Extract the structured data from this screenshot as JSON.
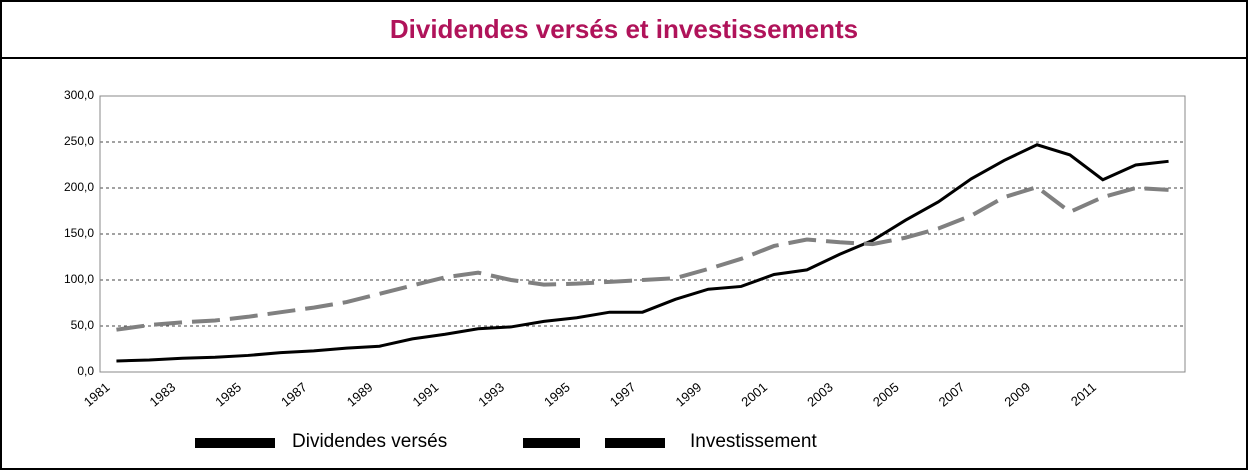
{
  "chart_data": {
    "type": "line",
    "title": "Dividendes versés et investissements",
    "categories": [
      "1981",
      null,
      "1983",
      null,
      "1985",
      null,
      "1987",
      null,
      "1989",
      null,
      "1991",
      null,
      "1993",
      null,
      "1995",
      null,
      "1997",
      null,
      "1999",
      null,
      "2001",
      null,
      "2003",
      null,
      "2005",
      null,
      "2007",
      null,
      "2009",
      null,
      "2011",
      null,
      null
    ],
    "series": [
      {
        "name": "Dividendes versés",
        "color": "#000000",
        "values": [
          12,
          13,
          15,
          16,
          18,
          21,
          23,
          26,
          28,
          36,
          41,
          47,
          49,
          55,
          59,
          65,
          65,
          79,
          90,
          93,
          106,
          111,
          128,
          143,
          165,
          185,
          210,
          230,
          247,
          236,
          209,
          225,
          229
        ]
      },
      {
        "name": "Investissement",
        "color": "#808080",
        "values": [
          46,
          51,
          54,
          56,
          60,
          65,
          70,
          76,
          85,
          94,
          103,
          108,
          100,
          95,
          96,
          98,
          100,
          102,
          112,
          123,
          137,
          144,
          141,
          139,
          146,
          156,
          170,
          190,
          201,
          174,
          190,
          200,
          198
        ]
      }
    ],
    "ylim": [
      0,
      300
    ],
    "yticks": [
      {
        "value": 0,
        "label": "0,0"
      },
      {
        "value": 50,
        "label": "50,0"
      },
      {
        "value": 100,
        "label": "100,0"
      },
      {
        "value": 150,
        "label": "150,0"
      },
      {
        "value": 200,
        "label": "200,0"
      },
      {
        "value": 250,
        "label": "250,0"
      },
      {
        "value": 300,
        "label": "300,0"
      }
    ],
    "grid": true,
    "legend": "bottom"
  }
}
